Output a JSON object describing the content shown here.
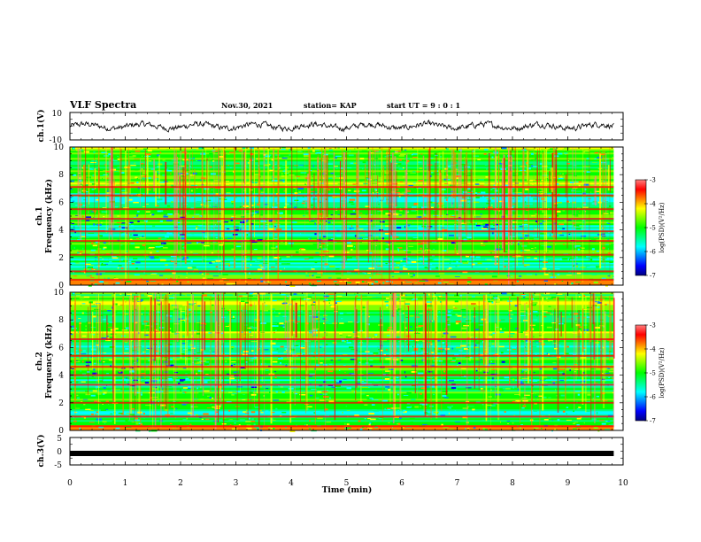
{
  "header": {
    "title": "VLF Spectra",
    "date": "Nov.30, 2021",
    "station": "station= KAP",
    "start_ut": "start  UT  =   9 : 0  : 1"
  },
  "colorbar_scale": [
    "#000080",
    "#0000ff",
    "#0080ff",
    "#00ffff",
    "#00ff80",
    "#00ff00",
    "#80ff00",
    "#ffff00",
    "#ff8000",
    "#ff0000",
    "#ff8080",
    "#ffffff"
  ],
  "chart_data": [
    {
      "type": "line",
      "id": "ch1-waveform",
      "ylabel": "ch.1(V)",
      "ylim": [
        -10,
        10
      ],
      "ytick_labels": [
        "-10",
        "10"
      ],
      "xlim": [
        0,
        10
      ],
      "x_end": 9.83,
      "approx_mean": 0,
      "approx_amplitude": 3,
      "color": "#000000"
    },
    {
      "type": "heatmap",
      "id": "ch1-spectrogram",
      "ylabel": "ch.1\nFrequency (kHz)",
      "ylabel_lines": [
        "ch.1",
        "Frequency (kHz)"
      ],
      "ylim": [
        0,
        10
      ],
      "ytick_labels": [
        "0",
        "2",
        "4",
        "6",
        "8",
        "10"
      ],
      "xlim": [
        0,
        10
      ],
      "x_end": 9.83,
      "colorbar": {
        "label": "log(PSD)(V²/Hz)",
        "range": [
          -7,
          -3
        ],
        "tick_labels": [
          "-7",
          "-6",
          "-5",
          "-4",
          "-3"
        ]
      },
      "bright_freq_bands_khz": [
        0.4,
        1.0,
        2.2,
        3.2,
        3.9,
        4.8,
        5.5,
        6.5,
        7.1
      ]
    },
    {
      "type": "heatmap",
      "id": "ch2-spectrogram",
      "ylabel": "ch.2\nFrequency (kHz)",
      "ylabel_lines": [
        "ch.2",
        "Frequency (kHz)"
      ],
      "ylim": [
        0,
        10
      ],
      "ytick_labels": [
        "0",
        "2",
        "4",
        "6",
        "8",
        "10"
      ],
      "xlim": [
        0,
        10
      ],
      "x_end": 9.83,
      "colorbar": {
        "label": "log(PSD)(V²/Hz)",
        "range": [
          -7,
          -3
        ],
        "tick_labels": [
          "-7",
          "-6",
          "-5",
          "-4",
          "-3"
        ]
      },
      "bright_freq_bands_khz": [
        0.3,
        1.0,
        2.0,
        3.3,
        4.0,
        4.6,
        5.4,
        6.6
      ]
    },
    {
      "type": "line",
      "id": "ch3-waveform",
      "ylabel": "ch.3(V)",
      "ylim": [
        -5,
        5
      ],
      "ytick_labels": [
        "-5",
        "0",
        "5"
      ],
      "xlim": [
        0,
        10
      ],
      "x_end": 9.83,
      "approx_mean": -0.8,
      "color": "#000000"
    }
  ],
  "x_axis": {
    "label": "Time (min)",
    "tick_labels": [
      "0",
      "1",
      "2",
      "3",
      "4",
      "5",
      "6",
      "7",
      "8",
      "9",
      "10"
    ]
  }
}
